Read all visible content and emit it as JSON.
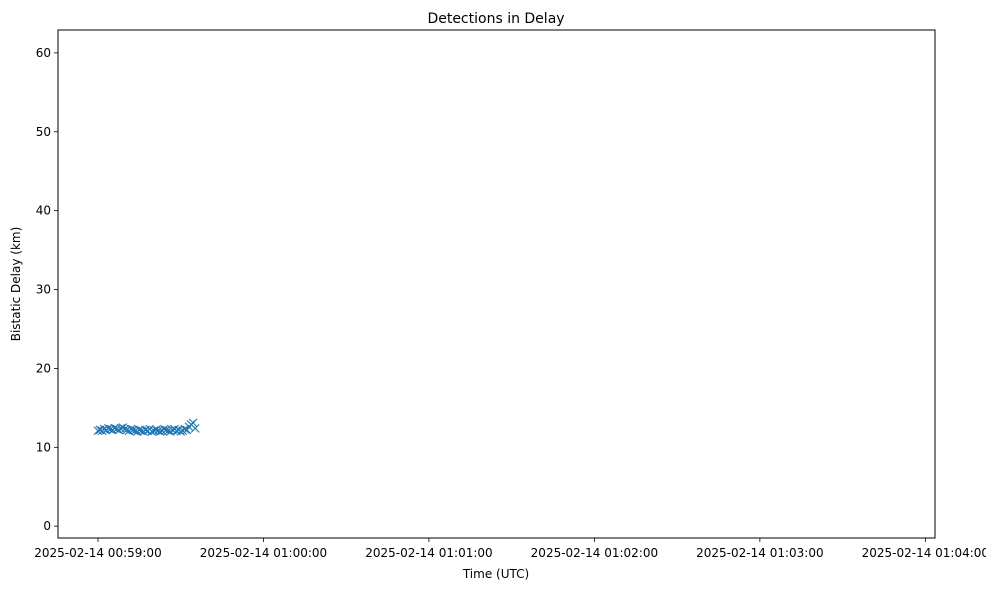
{
  "chart_data": {
    "type": "scatter",
    "title": "Detections in Delay",
    "xlabel": "Time (UTC)",
    "ylabel": "Bistatic Delay (km)",
    "marker": "x",
    "color": "#1f77b4",
    "grid": false,
    "legend": "none",
    "x_is_time": true,
    "x_origin": "2025-02-14 00:59:00",
    "xlim": [
      "2025-02-14 00:58:45.5",
      "2025-02-14 01:04:03.5"
    ],
    "ylim": [
      -1.5,
      62.9
    ],
    "x_ticks": [
      "2025-02-14 00:59:00",
      "2025-02-14 01:00:00",
      "2025-02-14 01:01:00",
      "2025-02-14 01:02:00",
      "2025-02-14 01:03:00",
      "2025-02-14 01:04:00"
    ],
    "y_ticks": [
      0,
      10,
      20,
      30,
      40,
      50,
      60
    ],
    "series": [
      {
        "x_seconds": [
          0.0,
          0.75,
          1.5,
          2.25,
          3.0,
          3.75,
          4.5,
          5.25,
          6.0,
          6.75,
          7.5,
          8.25,
          9.0,
          9.75,
          10.5,
          11.25,
          12.0,
          12.75,
          13.5,
          14.25,
          15.0,
          15.75,
          16.5,
          17.25,
          18.0,
          18.75,
          19.5,
          20.25,
          21.0,
          21.75,
          22.5,
          23.25,
          24.0,
          24.75,
          25.5,
          26.25,
          27.0,
          27.75,
          28.5,
          29.25,
          30.0,
          30.75,
          31.5,
          32.25,
          33.0,
          33.75,
          34.5,
          35.25
        ],
        "y": [
          12.1,
          12.2,
          12.1,
          12.3,
          12.2,
          12.4,
          12.3,
          12.2,
          12.4,
          12.3,
          12.2,
          12.4,
          12.5,
          12.3,
          12.2,
          12.1,
          12.3,
          12.2,
          12.1,
          12.0,
          12.2,
          12.1,
          12.0,
          12.2,
          12.1,
          12.3,
          12.0,
          12.1,
          12.2,
          12.1,
          12.0,
          12.1,
          12.3,
          12.2,
          12.1,
          12.0,
          12.2,
          12.3,
          12.1,
          12.2,
          12.0,
          12.1,
          12.3,
          12.2,
          12.6,
          12.9,
          13.1,
          12.4
        ]
      }
    ]
  }
}
